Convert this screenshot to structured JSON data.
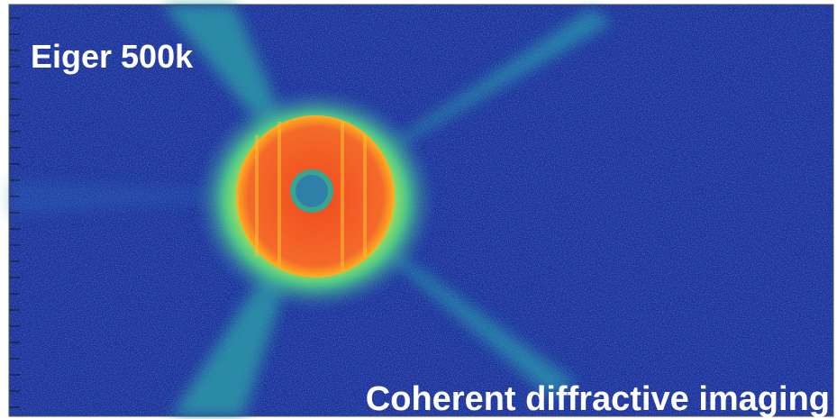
{
  "labels": {
    "top_left": "Eiger 500k",
    "bottom_right": "Coherent diffractive imaging"
  }
}
